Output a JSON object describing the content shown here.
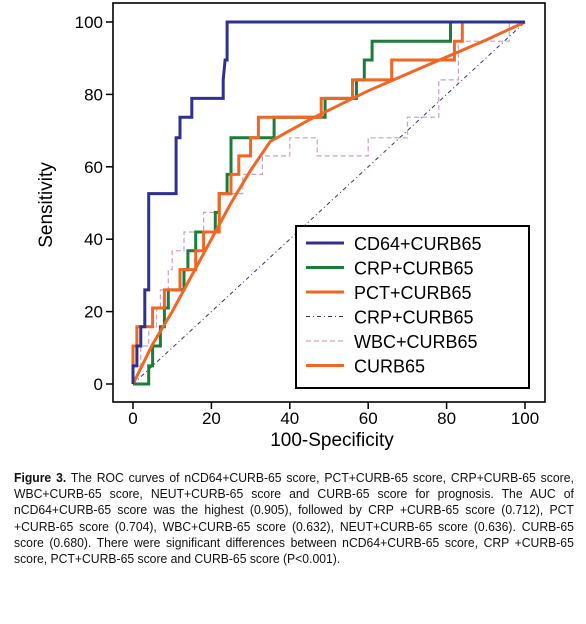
{
  "chart_data": {
    "type": "line",
    "xlabel": "100-Specificity",
    "ylabel": "Sensitivity",
    "xlim": [
      0,
      100
    ],
    "ylim": [
      0,
      100
    ],
    "x_ticks": [
      0,
      20,
      40,
      60,
      80,
      100
    ],
    "y_ticks": [
      0,
      20,
      40,
      60,
      80,
      100
    ],
    "legend_position": "bottom-right",
    "grid": false,
    "series": [
      {
        "name": "CD64+CURB65",
        "color": "#2e3192",
        "style": "solid",
        "points": [
          [
            0,
            0
          ],
          [
            0,
            5
          ],
          [
            1,
            5
          ],
          [
            1,
            10.5
          ],
          [
            2,
            10.5
          ],
          [
            2,
            15.8
          ],
          [
            3,
            15.8
          ],
          [
            3,
            26
          ],
          [
            4,
            26
          ],
          [
            4,
            52.6
          ],
          [
            11,
            52.6
          ],
          [
            11,
            68
          ],
          [
            12,
            68
          ],
          [
            12,
            73.7
          ],
          [
            15,
            73.7
          ],
          [
            15,
            78.9
          ],
          [
            23,
            78.9
          ],
          [
            23,
            84
          ],
          [
            23.5,
            89.5
          ],
          [
            24,
            89.5
          ],
          [
            24,
            100
          ],
          [
            100,
            100
          ]
        ]
      },
      {
        "name": "CRP+CURB65",
        "color": "#1a7d3a",
        "style": "solid",
        "points": [
          [
            0,
            0
          ],
          [
            4,
            0
          ],
          [
            4,
            5
          ],
          [
            5,
            5
          ],
          [
            5,
            10.5
          ],
          [
            7,
            10.5
          ],
          [
            7,
            15.8
          ],
          [
            8,
            15.8
          ],
          [
            8,
            21
          ],
          [
            9,
            21
          ],
          [
            9,
            26
          ],
          [
            13,
            26
          ],
          [
            13,
            31.6
          ],
          [
            14,
            31.6
          ],
          [
            14,
            36.8
          ],
          [
            16,
            36.8
          ],
          [
            16,
            42
          ],
          [
            21,
            42
          ],
          [
            21,
            47.4
          ],
          [
            22,
            47.4
          ],
          [
            22,
            52.6
          ],
          [
            24,
            52.6
          ],
          [
            24,
            57.9
          ],
          [
            25,
            57.9
          ],
          [
            25,
            68
          ],
          [
            36,
            68
          ],
          [
            36,
            73.7
          ],
          [
            49,
            73.7
          ],
          [
            49,
            78.9
          ],
          [
            57,
            78.9
          ],
          [
            57,
            84
          ],
          [
            59,
            84
          ],
          [
            59,
            89.5
          ],
          [
            61,
            89.5
          ],
          [
            61,
            94.7
          ],
          [
            81,
            94.7
          ],
          [
            81,
            100
          ],
          [
            100,
            100
          ]
        ]
      },
      {
        "name": "PCT+CURB65",
        "color": "#f26522",
        "style": "solid",
        "points": [
          [
            0,
            0
          ],
          [
            0,
            10.5
          ],
          [
            1,
            10.5
          ],
          [
            1,
            15.8
          ],
          [
            5,
            15.8
          ],
          [
            5,
            21
          ],
          [
            8,
            21
          ],
          [
            8,
            26
          ],
          [
            12,
            26
          ],
          [
            12,
            31.6
          ],
          [
            16,
            31.6
          ],
          [
            16,
            36.8
          ],
          [
            18,
            36.8
          ],
          [
            18,
            42
          ],
          [
            22,
            42
          ],
          [
            22,
            52.6
          ],
          [
            25,
            52.6
          ],
          [
            25,
            57.9
          ],
          [
            27,
            57.9
          ],
          [
            27,
            63
          ],
          [
            30,
            63
          ],
          [
            30,
            68
          ],
          [
            32,
            68
          ],
          [
            32,
            73.7
          ],
          [
            48,
            73.7
          ],
          [
            48,
            78.9
          ],
          [
            56,
            78.9
          ],
          [
            56,
            84
          ],
          [
            66,
            84
          ],
          [
            66,
            89.5
          ],
          [
            82,
            89.5
          ],
          [
            82,
            94.7
          ],
          [
            84,
            94.7
          ],
          [
            84,
            100
          ],
          [
            100,
            100
          ]
        ]
      },
      {
        "name": "CRP+CURB65",
        "color": "#333366",
        "style": "dashdot",
        "points": [
          [
            0,
            0
          ],
          [
            100,
            100
          ]
        ]
      },
      {
        "name": "WBC+CURB65",
        "color": "#c9a0c8",
        "style": "dashed",
        "points": [
          [
            0,
            0
          ],
          [
            0,
            5
          ],
          [
            2,
            5
          ],
          [
            2,
            10.5
          ],
          [
            4,
            10.5
          ],
          [
            4,
            15.8
          ],
          [
            6,
            15.8
          ],
          [
            6,
            21
          ],
          [
            7,
            21
          ],
          [
            7,
            26
          ],
          [
            9,
            26
          ],
          [
            9,
            31.6
          ],
          [
            10,
            31.6
          ],
          [
            10,
            36.8
          ],
          [
            13,
            36.8
          ],
          [
            13,
            42
          ],
          [
            18,
            42
          ],
          [
            18,
            47.4
          ],
          [
            22,
            47.4
          ],
          [
            22,
            52.6
          ],
          [
            28,
            52.6
          ],
          [
            28,
            57.9
          ],
          [
            33,
            57.9
          ],
          [
            33,
            63
          ],
          [
            40,
            63
          ],
          [
            40,
            68
          ],
          [
            47,
            68
          ],
          [
            47,
            63
          ],
          [
            60,
            63
          ],
          [
            60,
            68
          ],
          [
            70,
            68
          ],
          [
            70,
            73.7
          ],
          [
            78,
            73.7
          ],
          [
            78,
            84
          ],
          [
            83,
            84
          ],
          [
            83,
            94.7
          ],
          [
            96,
            94.7
          ],
          [
            96,
            100
          ],
          [
            100,
            100
          ]
        ]
      },
      {
        "name": "CURB65",
        "color": "#f26522",
        "style": "solid-thick",
        "points": [
          [
            0,
            0
          ],
          [
            5,
            11
          ],
          [
            10,
            20
          ],
          [
            15,
            30
          ],
          [
            20,
            40
          ],
          [
            25,
            50
          ],
          [
            30,
            59
          ],
          [
            35,
            67
          ],
          [
            45,
            73
          ],
          [
            60,
            81
          ],
          [
            75,
            88
          ],
          [
            90,
            95
          ],
          [
            100,
            100
          ]
        ]
      }
    ]
  },
  "caption": {
    "label": "Figure 3.",
    "text": " The ROC curves of nCD64+CURB-65 score, PCT+CURB-65 score, CRP+CURB-65 score, WBC+CURB-65 score, NEUT+CURB-65 score and CURB-65 score for prognosis. The AUC of nCD64+CURB-65 score was the highest (0.905), followed by CRP +CURB-65 score (0.712), PCT +CURB-65 score (0.704), WBC+CURB-65 score (0.632), NEUT+CURB-65 score (0.636). CURB-65 score (0.680). There were significant differences between nCD64+CURB-65 score, CRP +CURB-65 score, PCT+CURB-65 score and CURB-65 score (P<0.001)."
  }
}
